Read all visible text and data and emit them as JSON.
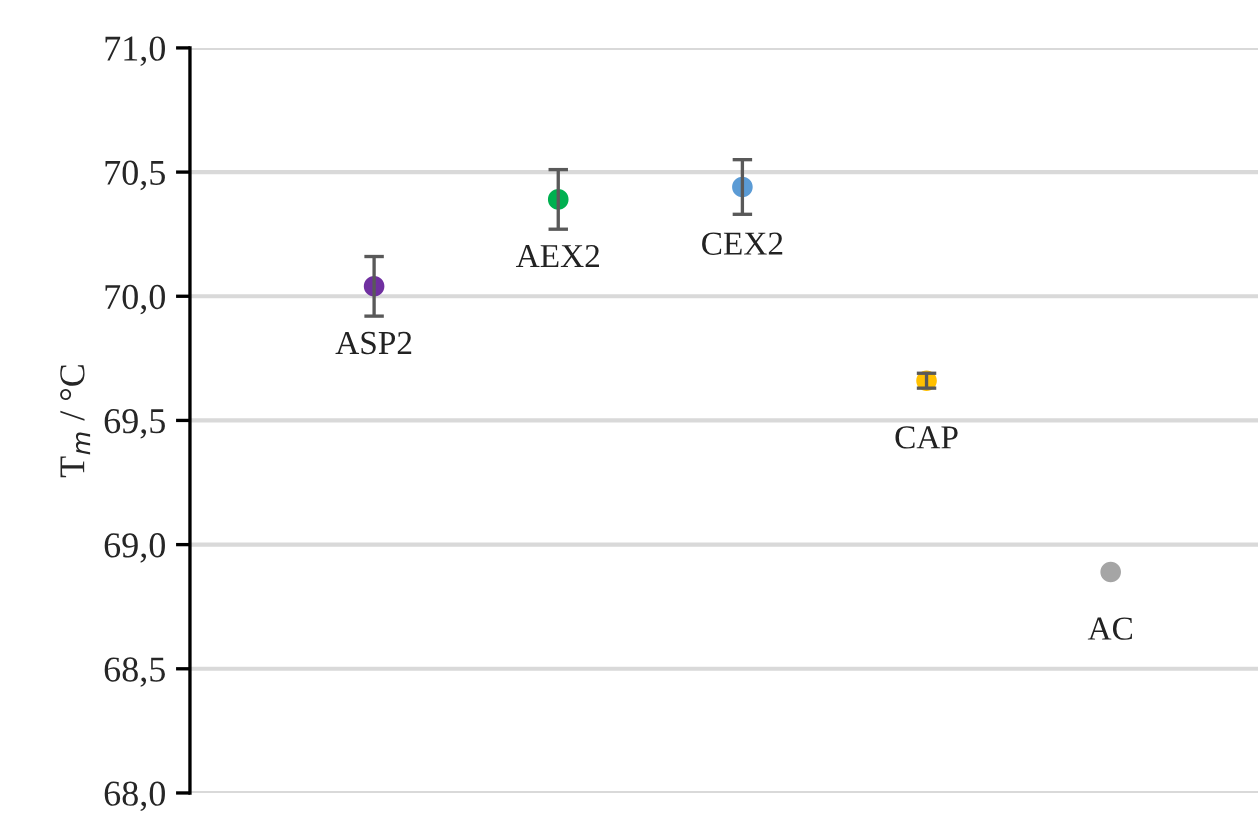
{
  "chart_data": {
    "type": "scatter",
    "ylabel": "T$_{m}$ / °C",
    "categories": [
      null,
      null,
      null,
      null,
      null
    ],
    "series": [
      {
        "name": "ASP2",
        "color": "#7030a0",
        "values": [
          70.04,
          null,
          null,
          null,
          null
        ],
        "errors": [
          0.12,
          null,
          null,
          null,
          null
        ]
      },
      {
        "name": "AEX2",
        "color": "#00b050",
        "values": [
          null,
          70.39,
          null,
          null,
          null
        ],
        "errors": [
          null,
          0.12,
          null,
          null,
          null
        ]
      },
      {
        "name": "CEX2",
        "color": "#5b9bd5",
        "values": [
          null,
          null,
          70.44,
          null,
          null
        ],
        "errors": [
          null,
          null,
          0.11,
          null,
          null
        ]
      },
      {
        "name": "CAP",
        "color": "#ffc000",
        "values": [
          null,
          null,
          null,
          69.66,
          null
        ],
        "errors": [
          null,
          null,
          null,
          0.03,
          null
        ]
      },
      {
        "name": "AC",
        "color": "#a5a5a5",
        "values": [
          null,
          null,
          null,
          null,
          68.89
        ],
        "errors": [
          null,
          null,
          null,
          null,
          null
        ]
      }
    ],
    "ylim": [
      68.0,
      71.0
    ],
    "yticks": [
      {
        "value": 68.0,
        "label": "68,0"
      },
      {
        "value": 68.5,
        "label": "68,5"
      },
      {
        "value": 69.0,
        "label": "69,0"
      },
      {
        "value": 69.5,
        "label": "69,5"
      },
      {
        "value": 70.0,
        "label": "70,0"
      },
      {
        "value": 70.5,
        "label": "70,5"
      },
      {
        "value": 71.0,
        "label": "71,0"
      }
    ],
    "grid": "y",
    "tick_labels": "y",
    "marker": "circle",
    "legend": false
  }
}
